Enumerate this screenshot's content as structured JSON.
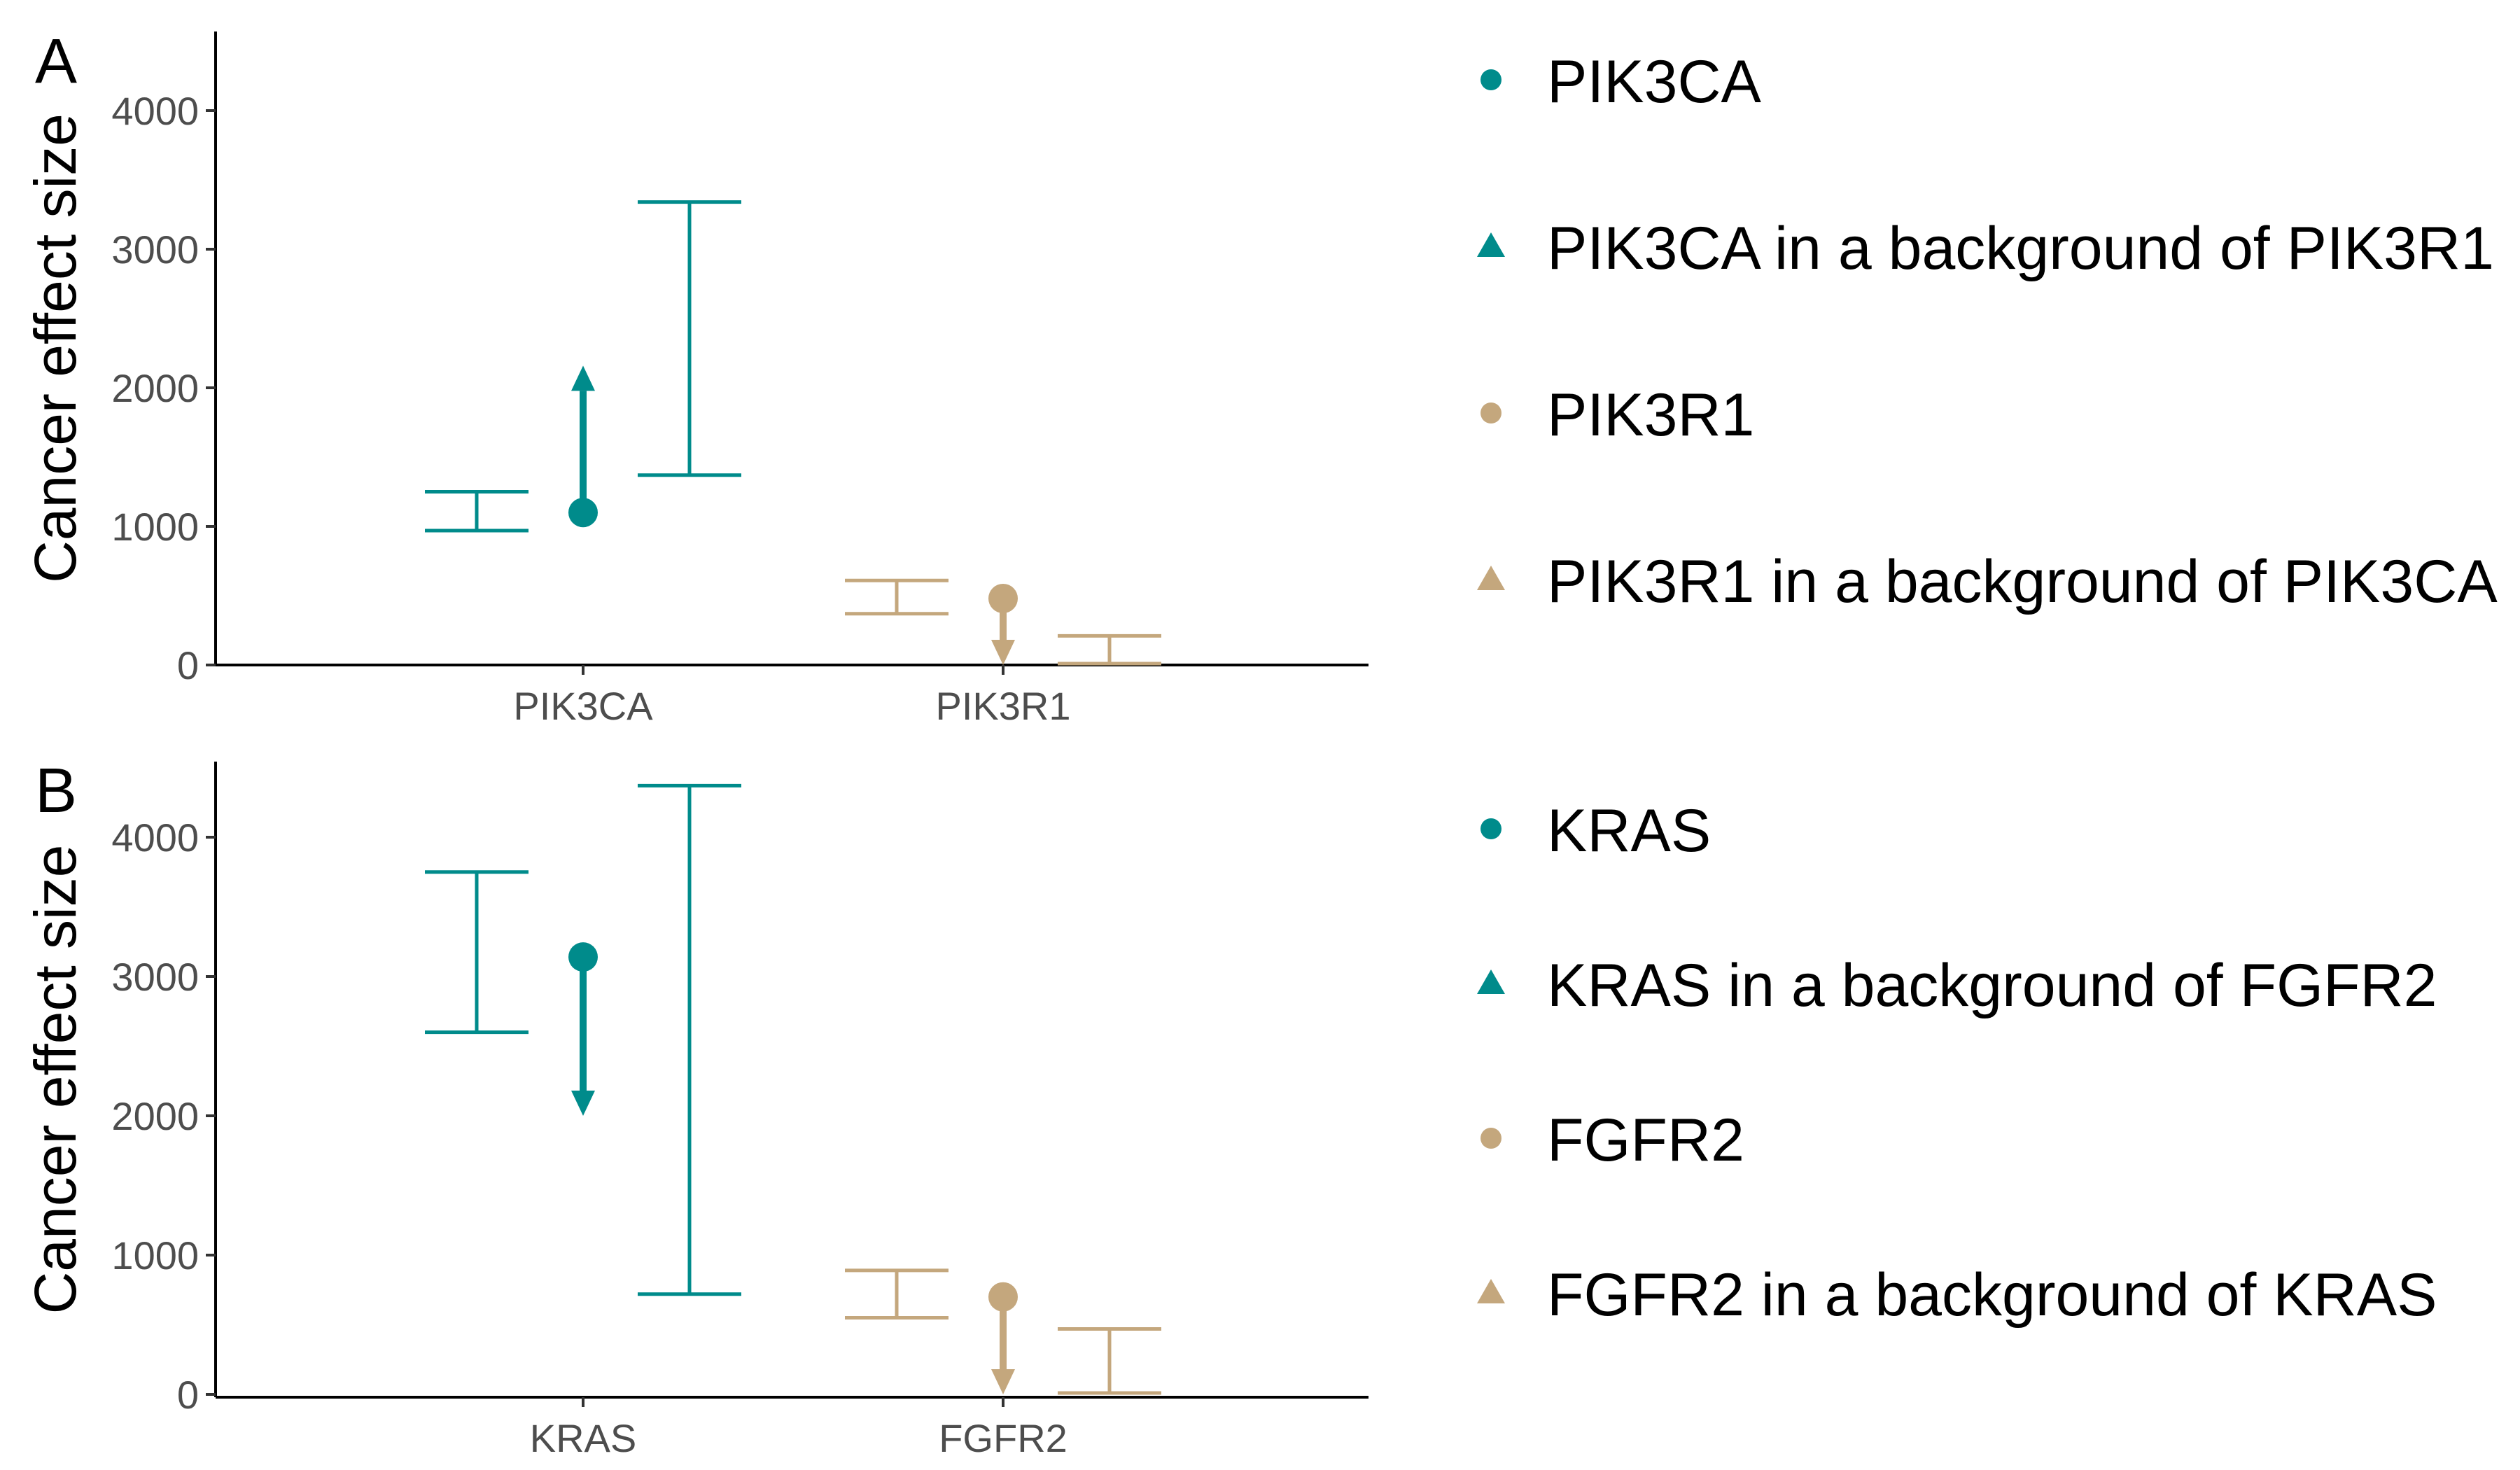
{
  "chart_data": [
    {
      "type": "errorbar",
      "panel_label": "A",
      "ylabel": "Cancer effect size",
      "ylim": [
        -100,
        4550
      ],
      "yticks": [
        0,
        1000,
        2000,
        3000,
        4000
      ],
      "ytick_labels": [
        "0",
        "1000",
        "2000",
        "3000",
        "4000"
      ],
      "categories": [
        "PIK3CA",
        "PIK3R1"
      ],
      "intervals": [
        {
          "category": "PIK3CA",
          "offset": "left",
          "low": 970,
          "high": 1250,
          "color": "#008B8B"
        },
        {
          "category": "PIK3CA",
          "offset": "right",
          "low": 1370,
          "high": 3340,
          "color": "#008B8B"
        },
        {
          "category": "PIK3R1",
          "offset": "left",
          "low": 370,
          "high": 610,
          "color": "#C4A77D"
        },
        {
          "category": "PIK3R1",
          "offset": "right",
          "low": 10,
          "high": 210,
          "color": "#C4A77D"
        }
      ],
      "arrows": [
        {
          "category": "PIK3CA",
          "from": 1100,
          "to": 2160,
          "color": "#008B8B"
        },
        {
          "category": "PIK3R1",
          "from": 480,
          "to": 0,
          "color": "#C4A77D"
        }
      ],
      "legend": [
        {
          "label": "PIK3CA",
          "shape": "circle",
          "color": "#008B8B"
        },
        {
          "label": "PIK3CA in a background of PIK3R1",
          "shape": "triangle",
          "color": "#008B8B"
        },
        {
          "label": "PIK3R1",
          "shape": "circle",
          "color": "#C4A77D"
        },
        {
          "label": "PIK3R1 in a background of PIK3CA",
          "shape": "triangle",
          "color": "#C4A77D"
        }
      ],
      "legend_position": "right",
      "grid": false
    },
    {
      "type": "errorbar",
      "panel_label": "B",
      "ylabel": "Cancer effect size",
      "ylim": [
        -100,
        4550
      ],
      "yticks": [
        0,
        1000,
        2000,
        3000,
        4000
      ],
      "ytick_labels": [
        "0",
        "1000",
        "2000",
        "3000",
        "4000"
      ],
      "categories": [
        "KRAS",
        "FGFR2"
      ],
      "intervals": [
        {
          "category": "KRAS",
          "offset": "left",
          "low": 2600,
          "high": 3750,
          "color": "#008B8B"
        },
        {
          "category": "KRAS",
          "offset": "right",
          "low": 720,
          "high": 4370,
          "color": "#008B8B"
        },
        {
          "category": "FGFR2",
          "offset": "left",
          "low": 550,
          "high": 890,
          "color": "#C4A77D"
        },
        {
          "category": "FGFR2",
          "offset": "right",
          "low": 10,
          "high": 470,
          "color": "#C4A77D"
        }
      ],
      "arrows": [
        {
          "category": "KRAS",
          "from": 3140,
          "to": 2000,
          "color": "#008B8B"
        },
        {
          "category": "FGFR2",
          "from": 700,
          "to": 0,
          "color": "#C4A77D"
        }
      ],
      "legend": [
        {
          "label": "KRAS",
          "shape": "circle",
          "color": "#008B8B"
        },
        {
          "label": "KRAS in a background of FGFR2",
          "shape": "triangle",
          "color": "#008B8B"
        },
        {
          "label": "FGFR2",
          "shape": "circle",
          "color": "#C4A77D"
        },
        {
          "label": "FGFR2 in a background of KRAS",
          "shape": "triangle",
          "color": "#C4A77D"
        }
      ],
      "legend_position": "right",
      "grid": false
    }
  ]
}
